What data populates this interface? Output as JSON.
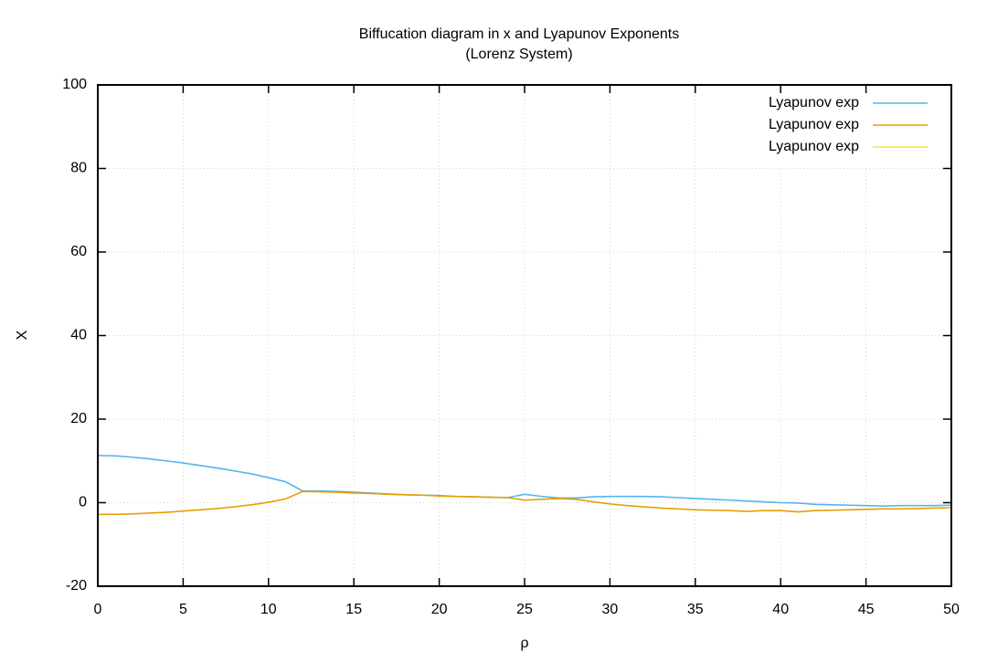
{
  "chart_data": {
    "type": "line",
    "title": "Biffucation diagram in x and Lyapunov Exponents",
    "subtitle": "(Lorenz System)",
    "x_label": "ρ",
    "y_label": "X",
    "x": [
      0,
      1,
      2,
      3,
      4,
      5,
      6,
      7,
      8,
      9,
      10,
      11,
      12,
      13,
      14,
      15,
      16,
      17,
      18,
      19,
      20,
      21,
      22,
      23,
      24,
      25,
      26,
      27,
      28,
      29,
      30,
      31,
      32,
      33,
      34,
      35,
      36,
      37,
      38,
      39,
      40,
      41,
      42,
      43,
      44,
      45,
      46,
      47,
      48,
      49,
      50
    ],
    "series": [
      {
        "name": "Lyapunov exp",
        "color": "#56b4e9",
        "values": [
          11.3,
          11.2,
          10.9,
          10.5,
          10.0,
          9.5,
          8.9,
          8.3,
          7.6,
          6.9,
          6.0,
          5.0,
          2.8,
          2.8,
          2.7,
          2.5,
          2.3,
          2.1,
          1.9,
          1.8,
          1.7,
          1.5,
          1.4,
          1.3,
          1.2,
          2.0,
          1.5,
          1.1,
          1.1,
          1.4,
          1.5,
          1.5,
          1.5,
          1.4,
          1.2,
          1.0,
          0.8,
          0.6,
          0.4,
          0.2,
          0.0,
          -0.1,
          -0.4,
          -0.5,
          -0.6,
          -0.7,
          -0.8,
          -0.7,
          -0.7,
          -0.7,
          -0.6
        ]
      },
      {
        "name": "Lyapunov exp",
        "color": "#e69f00",
        "values": [
          -2.8,
          -2.8,
          -2.7,
          -2.5,
          -2.3,
          -2.0,
          -1.7,
          -1.4,
          -1.0,
          -0.5,
          0.1,
          0.9,
          2.7,
          2.6,
          2.5,
          2.3,
          2.2,
          2.0,
          1.9,
          1.8,
          1.6,
          1.5,
          1.4,
          1.3,
          1.2,
          0.6,
          0.8,
          1.0,
          0.8,
          0.2,
          -0.3,
          -0.7,
          -1.0,
          -1.3,
          -1.5,
          -1.7,
          -1.8,
          -1.9,
          -2.1,
          -1.9,
          -1.9,
          -2.2,
          -1.9,
          -1.8,
          -1.7,
          -1.6,
          -1.5,
          -1.5,
          -1.4,
          -1.3,
          -1.2
        ]
      },
      {
        "name": "Lyapunov exp",
        "color": "#f0e442",
        "values": [
          null,
          null,
          null,
          null,
          null,
          null,
          null,
          null,
          null,
          null,
          null,
          null,
          null,
          null,
          null,
          null,
          null,
          null,
          null,
          null,
          null,
          null,
          null,
          null,
          null,
          null,
          null,
          null,
          null,
          null,
          null,
          null,
          null,
          null,
          null,
          null,
          null,
          null,
          null,
          null,
          null,
          null,
          null,
          null,
          null,
          null,
          null,
          null,
          null,
          null,
          null
        ]
      }
    ],
    "xlim": [
      0,
      50
    ],
    "xticks": [
      0,
      5,
      10,
      15,
      20,
      25,
      30,
      35,
      40,
      45,
      50
    ],
    "ylim": [
      -20,
      100
    ],
    "yticks": [
      -20,
      0,
      20,
      40,
      60,
      80,
      100
    ],
    "grid": true,
    "legend": "top-right"
  }
}
